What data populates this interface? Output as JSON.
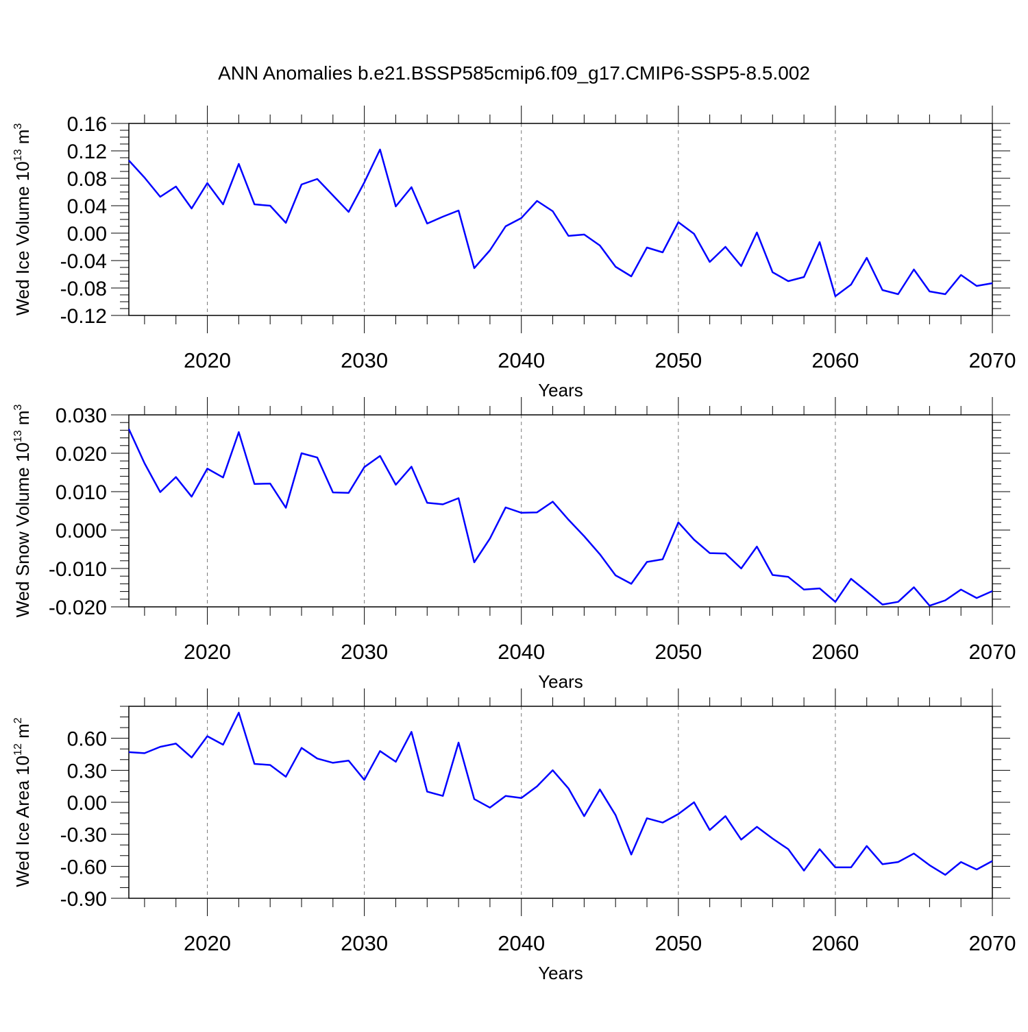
{
  "figure": {
    "title": "ANN Anomalies b.e21.BSSP585cmip6.f09_g17.CMIP6-SSP5-8.5.002",
    "line_color": "#0000ff",
    "grid_color": "#777777"
  },
  "chart_data": [
    {
      "type": "line",
      "title": "",
      "ylabel_main": "Wed Ice Volume 10",
      "ylabel_exp": "13",
      "ylabel_unit": "m",
      "ylabel_unit_exp": "3",
      "xlabel": "Years",
      "xlim": [
        2015,
        2070
      ],
      "ylim": [
        -0.12,
        0.16
      ],
      "x_ticks": [
        2020,
        2030,
        2040,
        2050,
        2060,
        2070
      ],
      "y_ticks": [
        -0.12,
        -0.08,
        -0.04,
        0.0,
        0.04,
        0.08,
        0.12,
        0.16
      ],
      "y_tick_labels": [
        "-0.12",
        "-0.08",
        "-0.04",
        "0.00",
        "0.04",
        "0.08",
        "0.12",
        "0.16"
      ],
      "y_minor_step": 0.01,
      "x_minor_step": 2,
      "grid": "vertical dashed at major x ticks",
      "x": [
        2015,
        2016,
        2017,
        2018,
        2019,
        2020,
        2021,
        2022,
        2023,
        2024,
        2025,
        2026,
        2027,
        2028,
        2029,
        2030,
        2031,
        2032,
        2033,
        2034,
        2035,
        2036,
        2037,
        2038,
        2039,
        2040,
        2041,
        2042,
        2043,
        2044,
        2045,
        2046,
        2047,
        2048,
        2049,
        2050,
        2051,
        2052,
        2053,
        2054,
        2055,
        2056,
        2057,
        2058,
        2059,
        2060,
        2061,
        2062,
        2063,
        2064,
        2065,
        2066,
        2067,
        2068,
        2069,
        2070
      ],
      "values": [
        0.106,
        0.081,
        0.053,
        0.068,
        0.036,
        0.073,
        0.042,
        0.101,
        0.042,
        0.04,
        0.015,
        0.071,
        0.079,
        0.055,
        0.031,
        0.074,
        0.122,
        0.039,
        0.067,
        0.014,
        0.024,
        0.033,
        -0.051,
        -0.025,
        0.01,
        0.022,
        0.047,
        0.032,
        -0.004,
        -0.002,
        -0.018,
        -0.049,
        -0.063,
        -0.021,
        -0.028,
        0.016,
        -0.001,
        -0.042,
        -0.02,
        -0.048,
        0.001,
        -0.057,
        -0.07,
        -0.064,
        -0.013,
        -0.092,
        -0.075,
        -0.036,
        -0.083,
        -0.089,
        -0.053,
        -0.085,
        -0.089,
        -0.061,
        -0.077,
        -0.073
      ]
    },
    {
      "type": "line",
      "title": "",
      "ylabel_main": "Wed Snow Volume 10",
      "ylabel_exp": "13",
      "ylabel_unit": "m",
      "ylabel_unit_exp": "3",
      "xlabel": "Years",
      "xlim": [
        2015,
        2070
      ],
      "ylim": [
        -0.02,
        0.03
      ],
      "x_ticks": [
        2020,
        2030,
        2040,
        2050,
        2060,
        2070
      ],
      "y_ticks": [
        -0.02,
        -0.01,
        0.0,
        0.01,
        0.02,
        0.03
      ],
      "y_tick_labels": [
        "-0.020",
        "-0.010",
        "0.000",
        "0.010",
        "0.020",
        "0.030"
      ],
      "y_minor_step": 0.002,
      "x_minor_step": 2,
      "grid": "vertical dashed at major x ticks",
      "x": [
        2015,
        2016,
        2017,
        2018,
        2019,
        2020,
        2021,
        2022,
        2023,
        2024,
        2025,
        2026,
        2027,
        2028,
        2029,
        2030,
        2031,
        2032,
        2033,
        2034,
        2035,
        2036,
        2037,
        2038,
        2039,
        2040,
        2041,
        2042,
        2043,
        2044,
        2045,
        2046,
        2047,
        2048,
        2049,
        2050,
        2051,
        2052,
        2053,
        2054,
        2055,
        2056,
        2057,
        2058,
        2059,
        2060,
        2061,
        2062,
        2063,
        2064,
        2065,
        2066,
        2067,
        2068,
        2069,
        2070
      ],
      "values": [
        0.0263,
        0.0174,
        0.0099,
        0.0138,
        0.0087,
        0.016,
        0.0137,
        0.0255,
        0.012,
        0.0121,
        0.0058,
        0.02,
        0.0189,
        0.0098,
        0.0097,
        0.0164,
        0.0193,
        0.0118,
        0.0165,
        0.0071,
        0.0067,
        0.0083,
        -0.0084,
        -0.0022,
        0.0059,
        0.0045,
        0.0046,
        0.0074,
        0.0027,
        -0.0016,
        -0.0063,
        -0.0118,
        -0.014,
        -0.0083,
        -0.0076,
        0.002,
        -0.0025,
        -0.006,
        -0.0061,
        -0.01,
        -0.0043,
        -0.0117,
        -0.0122,
        -0.0155,
        -0.0152,
        -0.0187,
        -0.0127,
        -0.016,
        -0.0194,
        -0.0187,
        -0.0149,
        -0.0197,
        -0.0183,
        -0.0155,
        -0.0177,
        -0.0159
      ]
    },
    {
      "type": "line",
      "title": "",
      "ylabel_main": "Wed Ice Area 10",
      "ylabel_exp": "12",
      "ylabel_unit": "m",
      "ylabel_unit_exp": "2",
      "xlabel": "Years",
      "xlim": [
        2015,
        2070
      ],
      "ylim": [
        -0.9,
        0.9
      ],
      "x_ticks": [
        2020,
        2030,
        2040,
        2050,
        2060,
        2070
      ],
      "y_ticks": [
        -0.9,
        -0.6,
        -0.3,
        0.0,
        0.3,
        0.6
      ],
      "y_tick_labels": [
        "-0.90",
        "-0.60",
        "-0.30",
        "0.00",
        "0.30",
        "0.60"
      ],
      "y_minor_step": 0.1,
      "x_minor_step": 2,
      "grid": "vertical dashed at major x ticks",
      "x": [
        2015,
        2016,
        2017,
        2018,
        2019,
        2020,
        2021,
        2022,
        2023,
        2024,
        2025,
        2026,
        2027,
        2028,
        2029,
        2030,
        2031,
        2032,
        2033,
        2034,
        2035,
        2036,
        2037,
        2038,
        2039,
        2040,
        2041,
        2042,
        2043,
        2044,
        2045,
        2046,
        2047,
        2048,
        2049,
        2050,
        2051,
        2052,
        2053,
        2054,
        2055,
        2056,
        2057,
        2058,
        2059,
        2060,
        2061,
        2062,
        2063,
        2064,
        2065,
        2066,
        2067,
        2068,
        2069,
        2070
      ],
      "values": [
        0.47,
        0.46,
        0.52,
        0.55,
        0.42,
        0.62,
        0.54,
        0.84,
        0.36,
        0.35,
        0.24,
        0.51,
        0.41,
        0.37,
        0.39,
        0.21,
        0.48,
        0.38,
        0.66,
        0.1,
        0.06,
        0.56,
        0.03,
        -0.05,
        0.06,
        0.04,
        0.15,
        0.3,
        0.13,
        -0.13,
        0.12,
        -0.12,
        -0.49,
        -0.15,
        -0.19,
        -0.11,
        0.0,
        -0.26,
        -0.13,
        -0.35,
        -0.23,
        -0.34,
        -0.44,
        -0.64,
        -0.44,
        -0.61,
        -0.61,
        -0.41,
        -0.58,
        -0.56,
        -0.48,
        -0.59,
        -0.68,
        -0.56,
        -0.63,
        -0.55
      ]
    }
  ]
}
